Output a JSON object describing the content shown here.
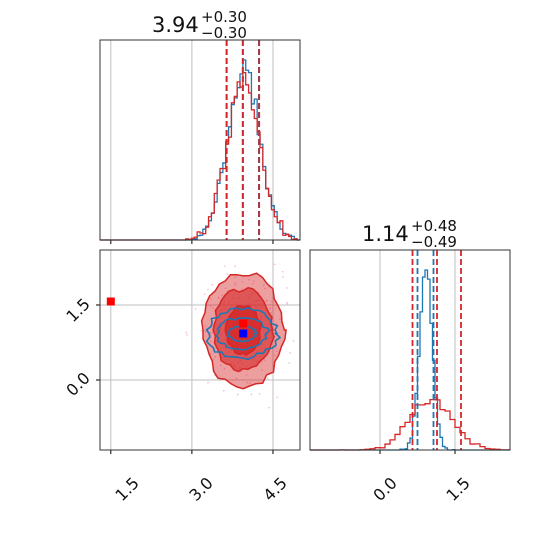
{
  "colors": {
    "series_a": "#1f77b4",
    "series_b": "#d62728",
    "point_a": "#0000ff",
    "point_b": "#ff0000",
    "grid": "#bfbfbf",
    "axes": "#000000",
    "scatter": "#f3b6d8"
  },
  "chart_data": [
    {
      "panel": "marginal-x",
      "type": "histogram",
      "title": {
        "value": "3.94",
        "plus": "+0.30",
        "minus": "−0.30"
      },
      "xlim": [
        1.3,
        5.0
      ],
      "grid_x": [
        1.5,
        3.0,
        4.5
      ],
      "grid": true,
      "quantile_lines": [
        3.64,
        3.94,
        4.24
      ],
      "series": [
        {
          "color": "series_a",
          "mean": 3.95,
          "sd": 0.3,
          "peak": 1.0,
          "seed": 3
        },
        {
          "color": "series_b",
          "mean": 3.94,
          "sd": 0.31,
          "peak": 0.93,
          "seed": 7
        }
      ]
    },
    {
      "panel": "marginal-y",
      "type": "histogram",
      "title": {
        "value": "1.14",
        "plus": "+0.48",
        "minus": "−0.49"
      },
      "xlim": [
        -1.4,
        2.6
      ],
      "grid_x": [
        0.0,
        1.5
      ],
      "grid": true,
      "tick_labels": [
        "0.0",
        "1.5"
      ],
      "quantile_lines": {
        "series_b": [
          0.65,
          1.14,
          1.62
        ],
        "series_a": [
          0.75,
          1.07
        ]
      },
      "series": [
        {
          "color": "series_a",
          "mean": 0.92,
          "sd": 0.13,
          "peak": 1.0,
          "seed": 5
        },
        {
          "color": "series_b",
          "mean": 1.0,
          "sd": 0.42,
          "peak": 0.28,
          "seed": 11
        }
      ]
    },
    {
      "panel": "joint",
      "type": "scatter",
      "xlim": [
        1.3,
        5.0
      ],
      "ylim": [
        -1.4,
        2.6
      ],
      "x_ticks": [
        1.5,
        3.0,
        4.5
      ],
      "y_ticks": [
        1.5,
        0.0
      ],
      "x_tick_labels": [
        "1.5",
        "3.0",
        "4.5"
      ],
      "y_tick_labels": [
        "1.5",
        "0.0"
      ],
      "grid": true,
      "contours": {
        "series_b": {
          "center": [
            3.95,
            1.0
          ],
          "radii": [
            [
              0.75,
              1.13
            ],
            [
              0.55,
              0.82
            ],
            [
              0.32,
              0.48
            ]
          ]
        },
        "series_a": {
          "center": [
            3.93,
            0.93
          ],
          "radii": [
            [
              0.66,
              0.48
            ],
            [
              0.47,
              0.31
            ],
            [
              0.26,
              0.15
            ]
          ]
        }
      },
      "points": [
        {
          "label": "marker-red-left",
          "x": 1.5,
          "y": 1.57,
          "color": "point_b"
        },
        {
          "label": "marker-red-center",
          "x": 3.95,
          "y": 1.13,
          "color": "point_b"
        },
        {
          "label": "marker-blue-center",
          "x": 3.95,
          "y": 0.93,
          "color": "point_a"
        }
      ]
    }
  ]
}
